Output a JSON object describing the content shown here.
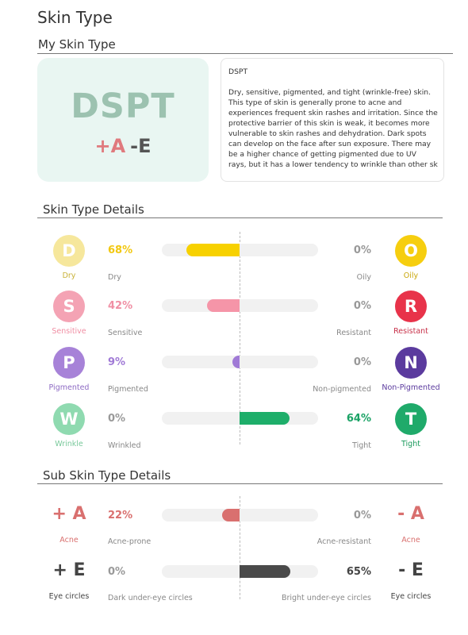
{
  "page_title": "Skin Type",
  "my_skin_type": {
    "title": "My Skin Type",
    "code": "DSPT",
    "sub_plus": "+A",
    "sub_minus": "-E",
    "description_title": "DSPT",
    "description_lines": [
      "Dry, sensitive, pigmented, and tight (wrinkle-free) skin.",
      "This type of skin is generally prone to acne and",
      "experiences frequent skin rashes and irritation. Since the",
      "protective barrier of this skin is weak, it becomes more",
      "vulnerable to skin rashes and dehydration. Dark spots",
      "can develop on the face after sun exposure. There may",
      "be a higher chance of getting pigmented due to UV",
      "rays, but it has a lower tendency to wrinkle than other sk"
    ]
  },
  "skin_type_details": {
    "title": "Skin Type Details",
    "rows": [
      {
        "left_letter": "D",
        "left_name": "Dry",
        "left_trait": "Dry",
        "left_pct": "68%",
        "left_value": 68,
        "right_letter": "O",
        "right_name": "Oily",
        "right_trait": "Oily",
        "right_pct": "0%",
        "right_value": 0,
        "left_color": "#f6e79c",
        "left_text_color": "#c9b238",
        "right_color": "#f6ce0f",
        "right_text_color": "#c9a70a",
        "bar_color": "#f7d100",
        "left_pct_color": "#f2c811",
        "right_pct_color": "#999999"
      },
      {
        "left_letter": "S",
        "left_name": "Sensitive",
        "left_trait": "Sensitive",
        "left_pct": "42%",
        "left_value": 42,
        "right_letter": "R",
        "right_name": "Resistant",
        "right_trait": "Resistant",
        "right_pct": "0%",
        "right_value": 0,
        "left_color": "#f4a3b4",
        "left_text_color": "#f08fa4",
        "right_color": "#e8334a",
        "right_text_color": "#c8324a",
        "bar_color": "#f595a8",
        "left_pct_color": "#f08fa4",
        "right_pct_color": "#999999"
      },
      {
        "left_letter": "P",
        "left_name": "Pigmented",
        "left_trait": "Pigmented",
        "left_pct": "9%",
        "left_value": 9,
        "right_letter": "N",
        "right_name": "Non-Pigmented",
        "right_trait": "Non-pigmented",
        "right_pct": "0%",
        "right_value": 0,
        "left_color": "#a782d8",
        "left_text_color": "#8e6bc4",
        "right_color": "#5b3b9e",
        "right_text_color": "#5b3b9e",
        "bar_color": "#a07ad6",
        "left_pct_color": "#a07ad6",
        "right_pct_color": "#999999"
      },
      {
        "left_letter": "W",
        "left_name": "Wrinkle",
        "left_trait": "Wrinkled",
        "left_pct": "0%",
        "left_value": 0,
        "right_letter": "T",
        "right_name": "Tight",
        "right_trait": "Tight",
        "right_pct": "64%",
        "right_value": 64,
        "left_color": "#8fdab0",
        "left_text_color": "#79c99b",
        "right_color": "#1faa6a",
        "right_text_color": "#1a9a5c",
        "bar_color": "#1eae6a",
        "left_pct_color": "#999999",
        "right_pct_color": "#1aa265"
      }
    ]
  },
  "sub_skin_type_details": {
    "title": "Sub Skin Type Details",
    "rows": [
      {
        "left_symbol": "+ A",
        "left_name": "Acne",
        "left_trait": "Acne-prone",
        "left_pct": "22%",
        "left_value": 22,
        "right_symbol": "- A",
        "right_name": "Acne",
        "right_trait": "Acne-resistant",
        "right_pct": "0%",
        "right_value": 0,
        "symbol_color": "#d9706f",
        "name_color": "#d9706f",
        "bar_color": "#d9706f",
        "left_pct_color": "#d9706f",
        "right_pct_color": "#999999"
      },
      {
        "left_symbol": "+ E",
        "left_name": "Eye circles",
        "left_trait": "Dark under-eye circles",
        "left_pct": "0%",
        "left_value": 0,
        "right_symbol": "- E",
        "right_name": "Eye circles",
        "right_trait": "Bright under-eye circles",
        "right_pct": "65%",
        "right_value": 65,
        "symbol_color": "#444444",
        "name_color": "#444444",
        "bar_color": "#4a4a4a",
        "left_pct_color": "#999999",
        "right_pct_color": "#444444"
      }
    ]
  }
}
